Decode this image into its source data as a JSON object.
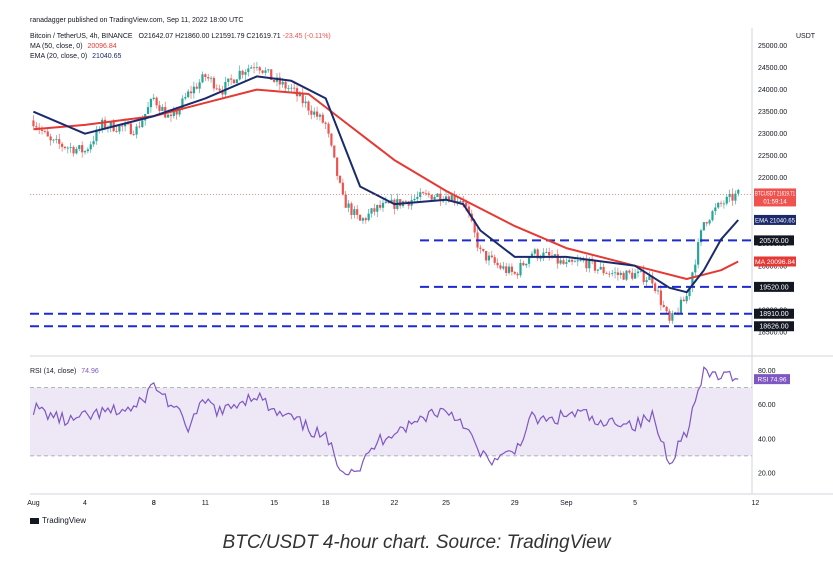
{
  "header": {
    "publisher": "ranadagger published on TradingView.com, Sep 11, 2022 18:00 UTC",
    "symbol_line": "Bitcoin / TetherUS, 4h, BINANCE",
    "ohlc": {
      "o": "O21642.07",
      "h": "H21860.00",
      "l": "L21591.79",
      "c": "C21619.71",
      "chg": "-23.45 (-0.11%)"
    },
    "ma_label": "MA (50, close, 0)",
    "ma_value": "20096.84",
    "ema_label": "EMA (20, close, 0)",
    "ema_value": "21040.65",
    "currency": "USDT"
  },
  "rsi_header": {
    "label": "RSI (14, close)",
    "value": "74.96"
  },
  "brand": "TradingView",
  "caption": "BTC/USDT 4-hour chart. Source: TradingView",
  "colors": {
    "up": "#26a69a",
    "down": "#ef5350",
    "ema": "#1a2a6c",
    "ma": "#e53935",
    "rsi": "#7e57c2",
    "rsi_band": "#ede7f6",
    "level": "#1e2ad2"
  },
  "chart_data": [
    {
      "type": "candlestick",
      "title": "Bitcoin / TetherUS, 4h, BINANCE",
      "ylim": [
        18200,
        25400
      ],
      "y_ticks": [
        "25000.00",
        "24500.00",
        "24000.00",
        "23500.00",
        "23000.00",
        "22500.00",
        "22000.00",
        "21500.00",
        "21000.00",
        "20500.00",
        "20000.00",
        "19500.00",
        "19000.00",
        "18500.00"
      ],
      "x_ticks": [
        "Aug",
        "4",
        "8",
        "11",
        "15",
        "18",
        "22",
        "25",
        "29",
        "Sep",
        "5",
        "8",
        "12"
      ],
      "price_path": [
        [
          "Aug 1",
          23300
        ],
        [
          "Aug 2",
          22800
        ],
        [
          "Aug 3",
          22700
        ],
        [
          "Aug 4",
          22600
        ],
        [
          "Aug 5",
          23200
        ],
        [
          "Aug 7",
          23100
        ],
        [
          "Aug 8",
          23800
        ],
        [
          "Aug 9",
          23300
        ],
        [
          "Aug 10",
          23900
        ],
        [
          "Aug 11",
          24300
        ],
        [
          "Aug 12",
          24000
        ],
        [
          "Aug 13",
          24400
        ],
        [
          "Aug 14",
          24600
        ],
        [
          "Aug 15",
          24200
        ],
        [
          "Aug 16",
          24000
        ],
        [
          "Aug 17",
          23600
        ],
        [
          "Aug 18",
          23200
        ],
        [
          "Aug 19",
          21500
        ],
        [
          "Aug 20",
          21000
        ],
        [
          "Aug 21",
          21300
        ],
        [
          "Aug 22",
          21400
        ],
        [
          "Aug 23",
          21500
        ],
        [
          "Aug 24",
          21600
        ],
        [
          "Aug 25",
          21600
        ],
        [
          "Aug 26",
          21500
        ],
        [
          "Aug 27",
          20300
        ],
        [
          "Aug 28",
          20000
        ],
        [
          "Aug 29",
          19800
        ],
        [
          "Aug 30",
          20300
        ],
        [
          "Aug 31",
          20200
        ],
        [
          "Sep 1",
          20000
        ],
        [
          "Sep 2",
          20100
        ],
        [
          "Sep 3",
          19900
        ],
        [
          "Sep 4",
          19800
        ],
        [
          "Sep 5",
          19800
        ],
        [
          "Sep 6",
          19700
        ],
        [
          "Sep 7",
          18700
        ],
        [
          "Sep 8",
          19300
        ],
        [
          "Sep 9",
          21000
        ],
        [
          "Sep 10",
          21400
        ],
        [
          "Sep 11",
          21620
        ]
      ],
      "ema_20": [
        [
          "Aug 1",
          23500
        ],
        [
          "Aug 4",
          23000
        ],
        [
          "Aug 8",
          23400
        ],
        [
          "Aug 11",
          23800
        ],
        [
          "Aug 14",
          24300
        ],
        [
          "Aug 16",
          24200
        ],
        [
          "Aug 18",
          23800
        ],
        [
          "Aug 20",
          21800
        ],
        [
          "Aug 22",
          21400
        ],
        [
          "Aug 25",
          21500
        ],
        [
          "Aug 26",
          21400
        ],
        [
          "Aug 27",
          20800
        ],
        [
          "Aug 29",
          20200
        ],
        [
          "Sep 1",
          20200
        ],
        [
          "Sep 5",
          20000
        ],
        [
          "Sep 7",
          19500
        ],
        [
          "Sep 8",
          19400
        ],
        [
          "Sep 9",
          19900
        ],
        [
          "Sep 10",
          20600
        ],
        [
          "Sep 11",
          21040
        ]
      ],
      "ma_50": [
        [
          "Aug 1",
          23100
        ],
        [
          "Aug 4",
          23200
        ],
        [
          "Aug 8",
          23400
        ],
        [
          "Aug 11",
          23700
        ],
        [
          "Aug 14",
          24000
        ],
        [
          "Aug 17",
          23900
        ],
        [
          "Aug 19",
          23300
        ],
        [
          "Aug 22",
          22400
        ],
        [
          "Aug 25",
          21700
        ],
        [
          "Aug 29",
          20900
        ],
        [
          "Sep 1",
          20400
        ],
        [
          "Sep 5",
          20000
        ],
        [
          "Sep 8",
          19700
        ],
        [
          "Sep 10",
          19900
        ],
        [
          "Sep 11",
          20097
        ]
      ],
      "horizontal_levels": [
        20576.0,
        19520.0,
        18910.0,
        18626.0
      ],
      "last_price": {
        "label": "BTCUSDT",
        "value": "21619.71",
        "countdown": "01:59:14"
      },
      "ema_tag": {
        "label": "EMA",
        "value": "21040.65"
      },
      "ma_tag": {
        "label": "MA",
        "value": "20096.84"
      }
    },
    {
      "type": "line",
      "title": "RSI (14, close)",
      "ylim": [
        10,
        85
      ],
      "y_ticks": [
        "80.00",
        "60.00",
        "40.00",
        "20.00"
      ],
      "band": [
        30,
        70
      ],
      "values": [
        [
          "Aug 1",
          58
        ],
        [
          "Aug 3",
          50
        ],
        [
          "Aug 5",
          55
        ],
        [
          "Aug 7",
          58
        ],
        [
          "Aug 8",
          72
        ],
        [
          "Aug 9",
          60
        ],
        [
          "Aug 10",
          47
        ],
        [
          "Aug 11",
          62
        ],
        [
          "Aug 12",
          55
        ],
        [
          "Aug 13",
          62
        ],
        [
          "Aug 14",
          66
        ],
        [
          "Aug 15",
          55
        ],
        [
          "Aug 16",
          52
        ],
        [
          "Aug 17",
          46
        ],
        [
          "Aug 18",
          40
        ],
        [
          "Aug 19",
          22
        ],
        [
          "Aug 20",
          23
        ],
        [
          "Aug 21",
          38
        ],
        [
          "Aug 22",
          45
        ],
        [
          "Aug 23",
          48
        ],
        [
          "Aug 24",
          55
        ],
        [
          "Aug 25",
          57
        ],
        [
          "Aug 26",
          50
        ],
        [
          "Aug 27",
          30
        ],
        [
          "Aug 28",
          27
        ],
        [
          "Aug 29",
          33
        ],
        [
          "Aug 30",
          52
        ],
        [
          "Aug 31",
          50
        ],
        [
          "Sep 1",
          54
        ],
        [
          "Sep 2",
          55
        ],
        [
          "Sep 3",
          47
        ],
        [
          "Sep 4",
          51
        ],
        [
          "Sep 5",
          48
        ],
        [
          "Sep 6",
          53
        ],
        [
          "Sep 7",
          27
        ],
        [
          "Sep 8",
          45
        ],
        [
          "Sep 9",
          78
        ],
        [
          "Sep 10",
          77
        ],
        [
          "Sep 11",
          74.96
        ]
      ]
    }
  ]
}
